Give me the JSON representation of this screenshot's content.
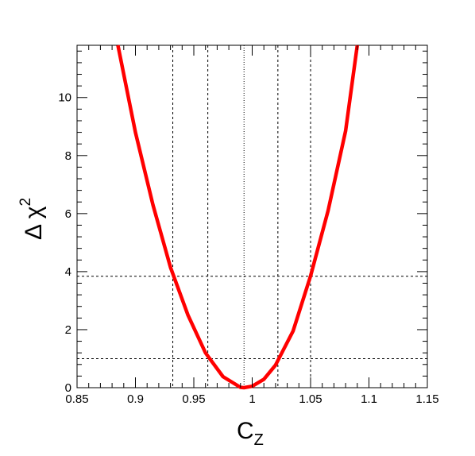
{
  "chart_data": {
    "type": "line",
    "title": "",
    "xlabel_main": "C",
    "xlabel_sub": "Z",
    "ylabel_main": "Δ χ",
    "ylabel_sup": "2",
    "xlim": [
      0.85,
      1.15
    ],
    "ylim": [
      0,
      11.8
    ],
    "x_ticks": [
      0.85,
      0.9,
      0.95,
      1,
      1.05,
      1.1,
      1.15
    ],
    "x_tick_labels": [
      "0.85",
      "0.9",
      "0.95",
      "1",
      "1.05",
      "1.1",
      "1.15"
    ],
    "y_ticks": [
      0,
      2,
      4,
      6,
      8,
      10
    ],
    "y_tick_labels": [
      "0",
      "2",
      "4",
      "6",
      "8",
      "10"
    ],
    "grid": false,
    "series": [
      {
        "color": "#ff0000",
        "x": [
          0.885,
          0.9,
          0.915,
          0.93,
          0.945,
          0.96,
          0.975,
          0.99,
          0.993,
          1.0,
          1.01,
          1.02,
          1.035,
          1.05,
          1.065,
          1.08,
          1.09
        ],
        "y": [
          11.8,
          8.8,
          6.3,
          4.15,
          2.5,
          1.2,
          0.38,
          0.01,
          0.0,
          0.05,
          0.29,
          0.78,
          1.95,
          3.85,
          6.1,
          8.85,
          11.8
        ]
      }
    ],
    "reference_lines": {
      "minimum_x": 0.993,
      "one_sigma": {
        "y": 1.0,
        "x": [
          0.962,
          1.022
        ]
      },
      "two_sigma": {
        "y": 3.84,
        "x": [
          0.932,
          1.05
        ]
      }
    }
  }
}
